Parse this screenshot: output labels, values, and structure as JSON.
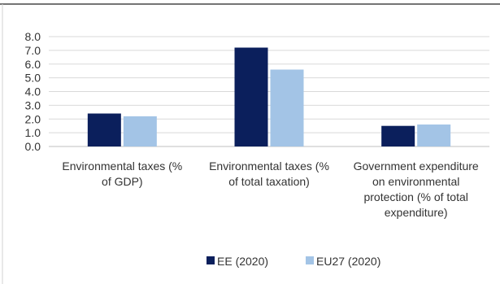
{
  "chart_data": {
    "type": "bar",
    "categories": [
      [
        "Environmental taxes (%",
        "of GDP)"
      ],
      [
        "Environmental taxes (%",
        "of total taxation)"
      ],
      [
        "Government expenditure",
        "on environmental",
        "protection (% of total",
        "expenditure)"
      ]
    ],
    "series": [
      {
        "name": "EE (2020)",
        "color": "#0b1f5c",
        "values": [
          2.4,
          7.2,
          1.5
        ]
      },
      {
        "name": "EU27 (2020)",
        "color": "#a3c4e6",
        "values": [
          2.2,
          5.6,
          1.6
        ]
      }
    ],
    "yticks": [
      "0.0",
      "1.0",
      "2.0",
      "3.0",
      "4.0",
      "5.0",
      "6.0",
      "7.0",
      "8.0"
    ],
    "ylim": [
      0,
      8
    ],
    "grid": true,
    "legend_position": "bottom"
  }
}
